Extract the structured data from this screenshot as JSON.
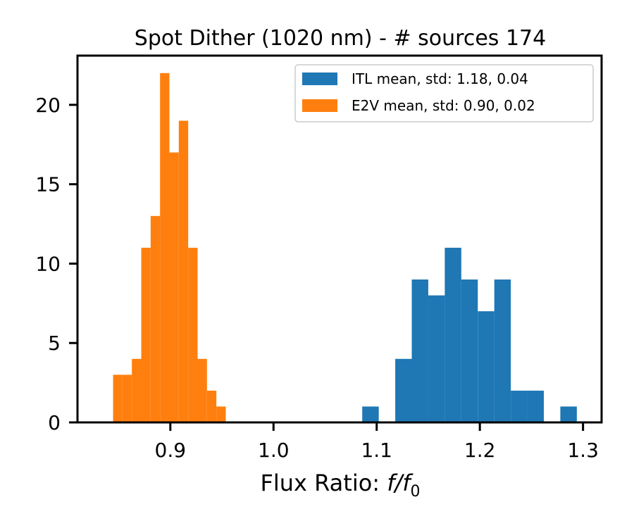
{
  "chart_data": {
    "type": "bar",
    "title": "Spot Dither (1020 nm) - # sources 174",
    "xlabel_prefix": "Flux Ratio: ",
    "xlabel_math": "f/f",
    "xlabel_subscript": "0",
    "ylabel": "",
    "xlim": [
      0.81,
      1.318
    ],
    "ylim": [
      0,
      23.1
    ],
    "xticks": [
      0.9,
      1.0,
      1.1,
      1.2,
      1.3
    ],
    "xtick_labels": [
      "0.9",
      "1.0",
      "1.1",
      "1.2",
      "1.3"
    ],
    "yticks": [
      0,
      5,
      10,
      15,
      20
    ],
    "ytick_labels": [
      "0",
      "5",
      "10",
      "15",
      "20"
    ],
    "grid": false,
    "legend_position": "top-right",
    "series": [
      {
        "name": "ITL  mean, std: 1.18, 0.04",
        "color": "#1f77b4",
        "bins": [
          {
            "x0": 1.086,
            "x1": 1.102,
            "count": 1
          },
          {
            "x0": 1.118,
            "x1": 1.134,
            "count": 4
          },
          {
            "x0": 1.134,
            "x1": 1.15,
            "count": 9
          },
          {
            "x0": 1.15,
            "x1": 1.166,
            "count": 8
          },
          {
            "x0": 1.166,
            "x1": 1.182,
            "count": 11
          },
          {
            "x0": 1.182,
            "x1": 1.198,
            "count": 9
          },
          {
            "x0": 1.198,
            "x1": 1.214,
            "count": 7
          },
          {
            "x0": 1.214,
            "x1": 1.23,
            "count": 9
          },
          {
            "x0": 1.23,
            "x1": 1.246,
            "count": 2
          },
          {
            "x0": 1.246,
            "x1": 1.262,
            "count": 2
          },
          {
            "x0": 1.278,
            "x1": 1.294,
            "count": 1
          }
        ]
      },
      {
        "name": "E2V  mean, std: 0.90, 0.02",
        "color": "#ff7f0e",
        "bins": [
          {
            "x0": 0.8445,
            "x1": 0.8536,
            "count": 3
          },
          {
            "x0": 0.8536,
            "x1": 0.8627,
            "count": 3
          },
          {
            "x0": 0.8627,
            "x1": 0.8718,
            "count": 4
          },
          {
            "x0": 0.8718,
            "x1": 0.8809,
            "count": 11
          },
          {
            "x0": 0.8809,
            "x1": 0.89,
            "count": 13
          },
          {
            "x0": 0.89,
            "x1": 0.8991,
            "count": 22
          },
          {
            "x0": 0.8991,
            "x1": 0.9082,
            "count": 17
          },
          {
            "x0": 0.9082,
            "x1": 0.9173,
            "count": 19
          },
          {
            "x0": 0.9173,
            "x1": 0.9264,
            "count": 11
          },
          {
            "x0": 0.9264,
            "x1": 0.9355,
            "count": 4
          },
          {
            "x0": 0.9355,
            "x1": 0.9446,
            "count": 2
          },
          {
            "x0": 0.9446,
            "x1": 0.9537,
            "count": 1
          }
        ]
      }
    ]
  }
}
